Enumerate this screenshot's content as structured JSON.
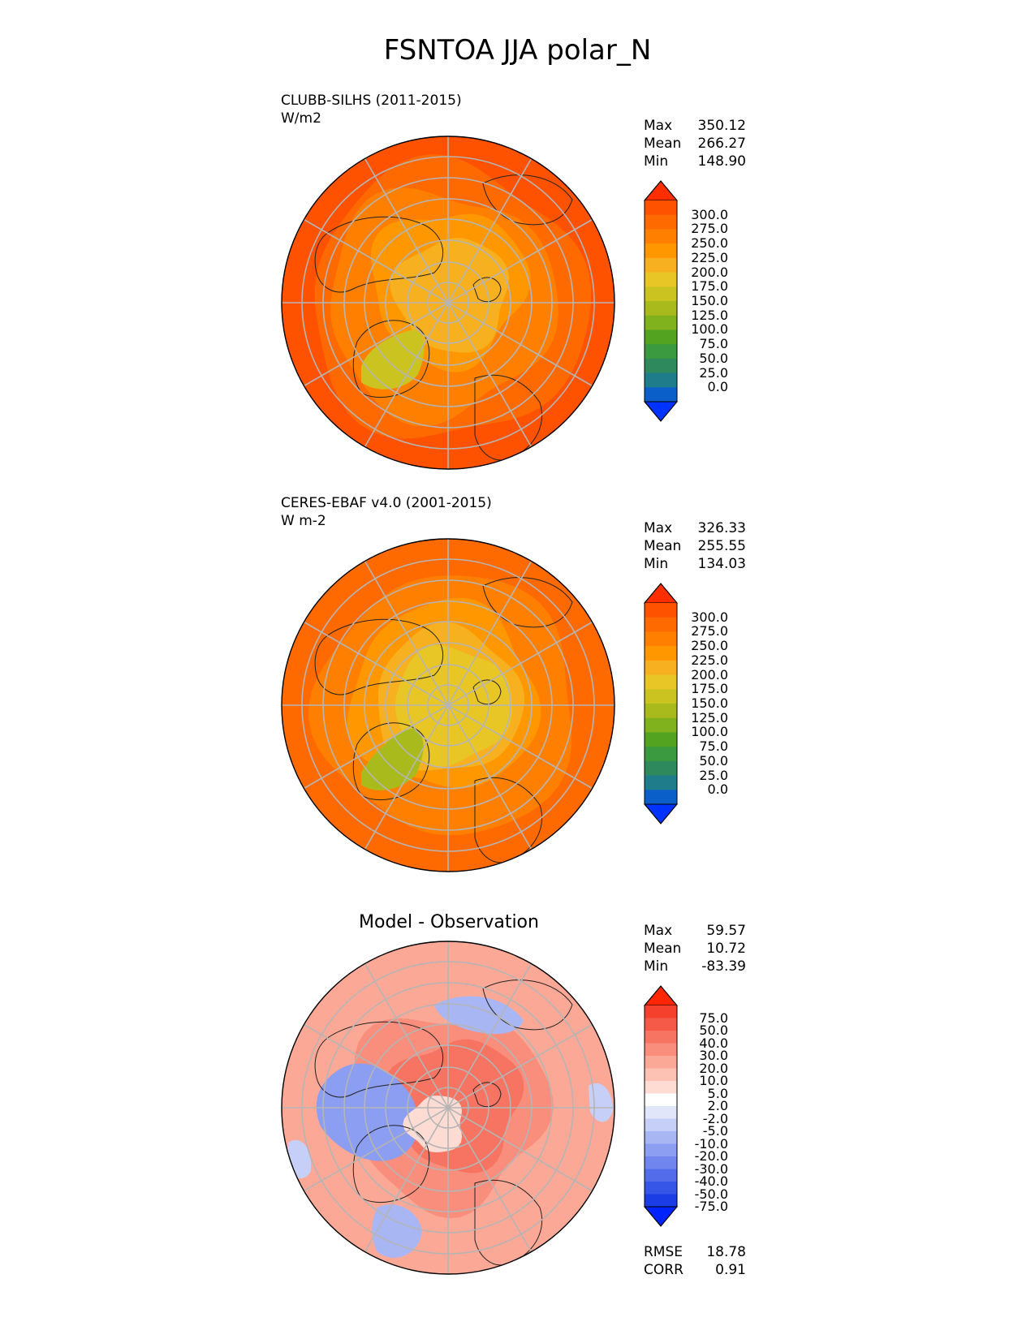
{
  "title": "FSNTOA JJA polar_N",
  "panels": [
    {
      "title": "CLUBB-SILHS (2011-2015)",
      "units": "W/m2",
      "stats": [
        {
          "label": "Max",
          "value": "350.12"
        },
        {
          "label": "Mean",
          "value": "266.27"
        },
        {
          "label": "Min",
          "value": "148.90"
        }
      ],
      "colorbar": {
        "ticks": [
          "300.0",
          "275.0",
          "250.0",
          "225.0",
          "200.0",
          "175.0",
          "150.0",
          "125.0",
          "100.0",
          "75.0",
          "50.0",
          "25.0",
          "0.0"
        ],
        "colors": [
          "#ff2e00",
          "#ff5200",
          "#ff6a00",
          "#ff8000",
          "#ff9800",
          "#f7b020",
          "#e8c626",
          "#cbc420",
          "#a9bb1c",
          "#7fb21c",
          "#53a320",
          "#3b9a3f",
          "#2e8a5c",
          "#1f7c8a",
          "#0a5fc9",
          "#0033ff"
        ]
      }
    },
    {
      "title": "CERES-EBAF v4.0 (2001-2015)",
      "units": "W m-2",
      "stats": [
        {
          "label": "Max",
          "value": "326.33"
        },
        {
          "label": "Mean",
          "value": "255.55"
        },
        {
          "label": "Min",
          "value": "134.03"
        }
      ],
      "colorbar": {
        "ticks": [
          "300.0",
          "275.0",
          "250.0",
          "225.0",
          "200.0",
          "175.0",
          "150.0",
          "125.0",
          "100.0",
          "75.0",
          "50.0",
          "25.0",
          "0.0"
        ],
        "colors": [
          "#ff2e00",
          "#ff5200",
          "#ff6a00",
          "#ff8000",
          "#ff9800",
          "#f7b020",
          "#e8c626",
          "#cbc420",
          "#a9bb1c",
          "#7fb21c",
          "#53a320",
          "#3b9a3f",
          "#2e8a5c",
          "#1f7c8a",
          "#0a5fc9",
          "#0033ff"
        ]
      }
    },
    {
      "title": "Model - Observation",
      "units": "",
      "stats": [
        {
          "label": "Max",
          "value": "59.57"
        },
        {
          "label": "Mean",
          "value": "10.72"
        },
        {
          "label": "Min",
          "value": "-83.39"
        }
      ],
      "metrics": [
        {
          "label": "RMSE",
          "value": "18.78"
        },
        {
          "label": "CORR",
          "value": "0.91"
        }
      ],
      "colorbar": {
        "ticks": [
          "75.0",
          "50.0",
          "40.0",
          "30.0",
          "20.0",
          "10.0",
          "5.0",
          "2.0",
          "-2.0",
          "-5.0",
          "-10.0",
          "-20.0",
          "-30.0",
          "-40.0",
          "-50.0",
          "-75.0"
        ],
        "colors": [
          "#ff2600",
          "#f5402e",
          "#f55a48",
          "#f77462",
          "#fa8e7c",
          "#fca896",
          "#fdc2b4",
          "#fedcd4",
          "#ffffff",
          "#e2e6fb",
          "#c6cff8",
          "#a9b6f4",
          "#8c9ef1",
          "#7086ee",
          "#536dea",
          "#3656e8",
          "#1a3de6",
          "#0024ff"
        ]
      }
    }
  ]
}
